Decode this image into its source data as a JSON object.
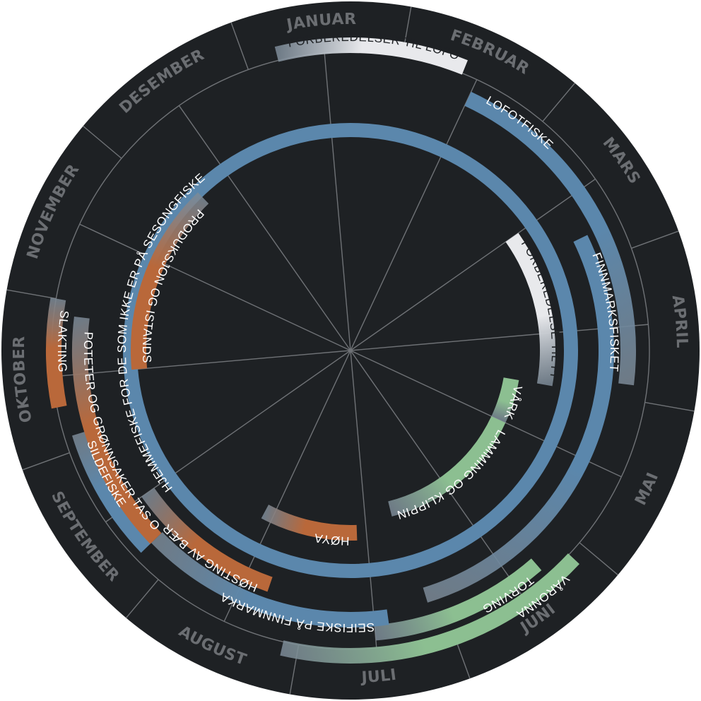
{
  "colors": {
    "background": "#1e2124",
    "line": "#6f7276",
    "month_text": "#6b6e72",
    "fishing": "#5b87ac",
    "fishing_fade": "#7c8a97",
    "farming": "#8cbf91",
    "harvest": "#b9683a",
    "preparation": "#e8e9ec",
    "label_light": "#ffffff",
    "label_dark": "#1e2124"
  },
  "months": [
    "JANUAR",
    "FEBRUAR",
    "MARS",
    "APRIL",
    "MAI",
    "JUNI",
    "JULI",
    "AUGUST",
    "SEPTEMBER",
    "OKTOBER",
    "NOVEMBER",
    "DESEMBER"
  ],
  "activities": [
    {
      "label": "LOFOTFISKE",
      "category": "fishing",
      "start_month": 1.5,
      "end_month": 3.9,
      "fade": "end"
    },
    {
      "label": "FINNMARKSFISKET",
      "category": "fishing",
      "start_month": 2.8,
      "end_month": 6.1,
      "fade": "end"
    },
    {
      "label": "HJEMMEFISKE FOR DE SOM IKKE ER PÅ SESONGFISKE",
      "category": "fishing",
      "start_month": 0.0,
      "end_month": 12.0,
      "fade": "none"
    },
    {
      "label": "FORBEREDELSE TIL FINNMARKSFISKE",
      "category": "preparation",
      "start_month": 2.5,
      "end_month": 4.0,
      "fade": "end"
    },
    {
      "label": "VÅRKNIPE",
      "category": "farming",
      "start_month": 4.0,
      "end_month": 4.5,
      "fade": "end"
    },
    {
      "label": "LAMMING OG KLIPPING AV SAU",
      "category": "farming",
      "start_month": 4.5,
      "end_month": 6.2,
      "fade": "end"
    },
    {
      "label": "VÅRONNA",
      "category": "farming",
      "start_month": 5.1,
      "end_month": 7.1,
      "fade": "end"
    },
    {
      "label": "TORVING",
      "category": "farming",
      "start_month": 5.3,
      "end_month": 6.5,
      "fade": "end"
    },
    {
      "label": "SEIFISKE PÅ FINNMARKA",
      "category": "fishing",
      "start_month": 6.4,
      "end_month": 8.2,
      "fade": "end"
    },
    {
      "label": "HØYA",
      "category": "harvest",
      "start_month": 6.6,
      "end_month": 7.6,
      "fade": "end"
    },
    {
      "label": "HØSTING AV BÆR",
      "category": "harvest",
      "start_month": 7.3,
      "end_month": 8.5,
      "fade": "end"
    },
    {
      "label": "SILDEFISKE",
      "category": "fishing",
      "start_month": 8.2,
      "end_month": 9.1,
      "fade": "end"
    },
    {
      "label": "POTETER OG GRØNNSAKER TAS OPP",
      "category": "harvest",
      "start_month": 8.2,
      "end_month": 9.9,
      "fade": "end"
    },
    {
      "label": "SLAKTING",
      "category": "harvest",
      "start_month": 9.3,
      "end_month": 10.0,
      "fade": "end"
    },
    {
      "label": "PRODUKSJON OG ISTANDSETTING AV KLÆR",
      "category": "harvest",
      "start_month": 9.5,
      "end_month": 11.2,
      "fade": "end"
    },
    {
      "label": "FORBEREDELSER TIL LOFOTFISKE",
      "category": "preparation",
      "start_month": 0.2,
      "end_month": 1.4,
      "fade": "start"
    }
  ]
}
